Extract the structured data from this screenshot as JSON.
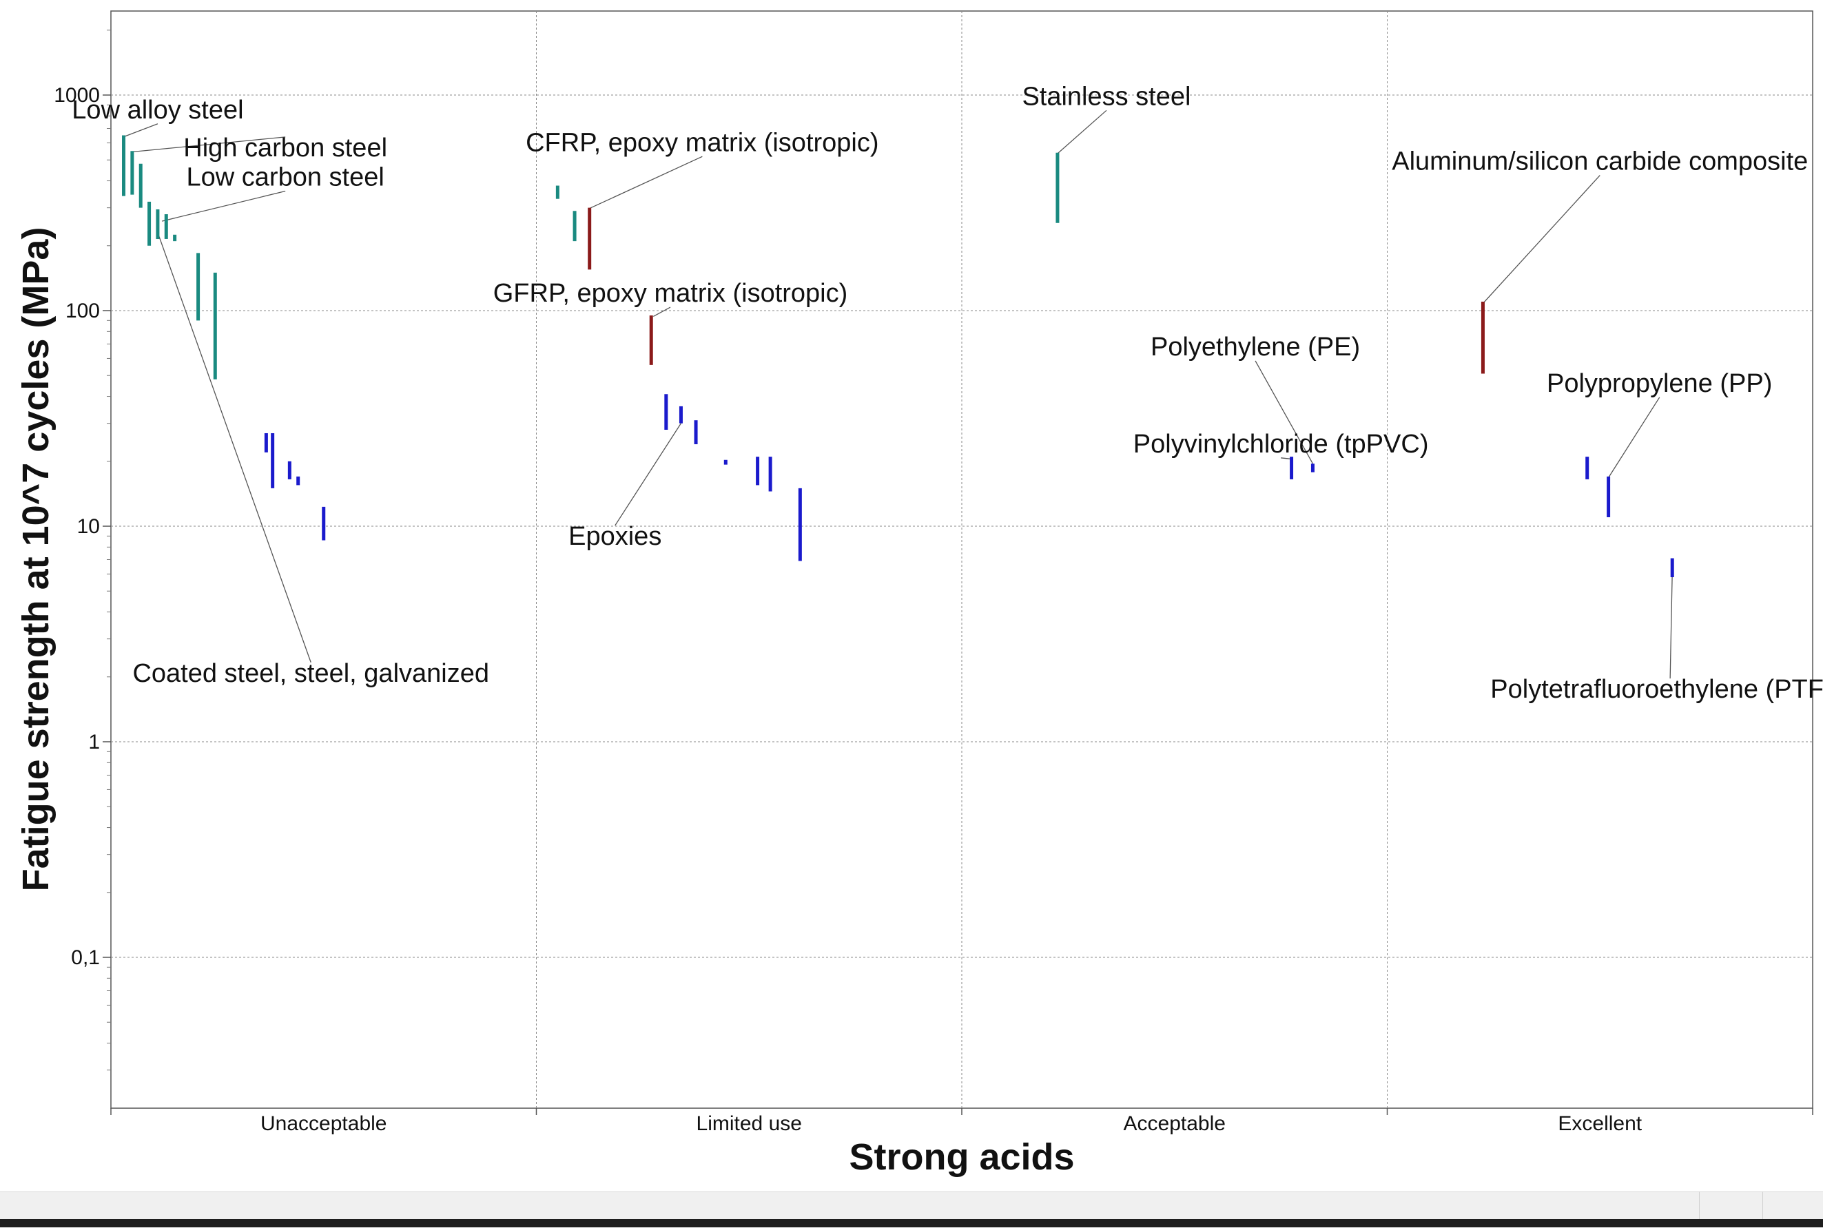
{
  "chart_data": {
    "type": "range",
    "title": "",
    "xlabel": "Strong acids",
    "ylabel": "Fatigue strength at 10^7 cycles (MPa)",
    "yscale": "log",
    "ylim": [
      0.02,
      2500
    ],
    "yticks": [
      {
        "value": 0.1,
        "label": "0,1"
      },
      {
        "value": 1,
        "label": "1"
      },
      {
        "value": 10,
        "label": "10"
      },
      {
        "value": 100,
        "label": "100"
      },
      {
        "value": 1000,
        "label": "1000"
      }
    ],
    "categories": [
      "Unacceptable",
      "Limited use",
      "Acceptable",
      "Excellent"
    ],
    "grid": true,
    "colors": {
      "metal": "#1a8a80",
      "composite": "#8b1a1a",
      "polymer": "#1a1acc"
    },
    "series": [
      {
        "category": 0,
        "pos": 0.03,
        "low": 340,
        "high": 650,
        "class": "metal"
      },
      {
        "category": 0,
        "pos": 0.05,
        "low": 345,
        "high": 550,
        "class": "metal"
      },
      {
        "category": 0,
        "pos": 0.07,
        "low": 300,
        "high": 480,
        "class": "metal"
      },
      {
        "category": 0,
        "pos": 0.09,
        "low": 200,
        "high": 320,
        "class": "metal"
      },
      {
        "category": 0,
        "pos": 0.11,
        "low": 215,
        "high": 295,
        "class": "metal"
      },
      {
        "category": 0,
        "pos": 0.13,
        "low": 215,
        "high": 280,
        "class": "metal"
      },
      {
        "category": 0,
        "pos": 0.15,
        "low": 210,
        "high": 225,
        "class": "metal"
      },
      {
        "category": 0,
        "pos": 0.205,
        "low": 90,
        "high": 185,
        "class": "metal"
      },
      {
        "category": 0,
        "pos": 0.245,
        "low": 48,
        "high": 150,
        "class": "metal"
      },
      {
        "category": 0,
        "pos": 0.365,
        "low": 22,
        "high": 27,
        "class": "polymer"
      },
      {
        "category": 0,
        "pos": 0.38,
        "low": 15,
        "high": 27,
        "class": "polymer"
      },
      {
        "category": 0,
        "pos": 0.42,
        "low": 16.5,
        "high": 20,
        "class": "polymer"
      },
      {
        "category": 0,
        "pos": 0.44,
        "low": 15.5,
        "high": 17,
        "class": "polymer"
      },
      {
        "category": 0,
        "pos": 0.5,
        "low": 8.6,
        "high": 12.3,
        "class": "polymer"
      },
      {
        "category": 1,
        "pos": 0.05,
        "low": 330,
        "high": 380,
        "class": "metal"
      },
      {
        "category": 1,
        "pos": 0.09,
        "low": 210,
        "high": 290,
        "class": "metal"
      },
      {
        "category": 1,
        "pos": 0.125,
        "low": 155,
        "high": 300,
        "class": "composite"
      },
      {
        "category": 1,
        "pos": 0.27,
        "low": 56,
        "high": 95,
        "class": "composite"
      },
      {
        "category": 1,
        "pos": 0.305,
        "low": 28,
        "high": 41,
        "class": "polymer"
      },
      {
        "category": 1,
        "pos": 0.34,
        "low": 30,
        "high": 36,
        "class": "polymer"
      },
      {
        "category": 1,
        "pos": 0.375,
        "low": 24,
        "high": 31,
        "class": "polymer"
      },
      {
        "category": 1,
        "pos": 0.445,
        "low": 19.3,
        "high": 20.3,
        "class": "polymer"
      },
      {
        "category": 1,
        "pos": 0.52,
        "low": 15.5,
        "high": 21,
        "class": "polymer"
      },
      {
        "category": 1,
        "pos": 0.55,
        "low": 14.5,
        "high": 21,
        "class": "polymer"
      },
      {
        "category": 1,
        "pos": 0.62,
        "low": 6.9,
        "high": 15,
        "class": "polymer"
      },
      {
        "category": 2,
        "pos": 0.225,
        "low": 255,
        "high": 540,
        "class": "metal"
      },
      {
        "category": 2,
        "pos": 0.775,
        "low": 16.5,
        "high": 21,
        "class": "polymer"
      },
      {
        "category": 2,
        "pos": 0.825,
        "low": 17.8,
        "high": 19.5,
        "class": "polymer"
      },
      {
        "category": 3,
        "pos": 0.225,
        "low": 51,
        "high": 110,
        "class": "composite"
      },
      {
        "category": 3,
        "pos": 0.47,
        "low": 16.5,
        "high": 21,
        "class": "polymer"
      },
      {
        "category": 3,
        "pos": 0.52,
        "low": 11,
        "high": 17,
        "class": "polymer"
      },
      {
        "category": 3,
        "pos": 0.67,
        "low": 5.8,
        "high": 7.1,
        "class": "polymer"
      }
    ],
    "annotations": [
      {
        "text": "Low alloy steel",
        "category": 0,
        "pos": 0.11,
        "value": 780,
        "target_pos": 0.03,
        "target_value": 640
      },
      {
        "text": "High carbon steel",
        "category": 0,
        "pos": 0.41,
        "value": 520,
        "target_pos": 0.05,
        "target_value": 545
      },
      {
        "text": "Low carbon steel",
        "category": 0,
        "pos": 0.41,
        "value": 380,
        "target_pos": 0.12,
        "target_value": 260
      },
      {
        "text": "Coated steel, steel, galvanized",
        "category": 0,
        "pos": 0.47,
        "value": 1.9,
        "target_pos": 0.11,
        "target_value": 230
      },
      {
        "text": "CFRP, epoxy matrix (isotropic)",
        "category": 1,
        "pos": 0.39,
        "value": 550,
        "target_pos": 0.125,
        "target_value": 298
      },
      {
        "text": "GFRP, epoxy matrix (isotropic)",
        "category": 1,
        "pos": 0.315,
        "value": 110,
        "target_pos": 0.275,
        "target_value": 94
      },
      {
        "text": "Epoxies",
        "category": 1,
        "pos": 0.185,
        "value": 8.2,
        "target_pos": 0.34,
        "target_value": 30
      },
      {
        "text": "Stainless steel",
        "category": 2,
        "pos": 0.34,
        "value": 900,
        "target_pos": 0.225,
        "target_value": 535
      },
      {
        "text": "Polyethylene (PE)",
        "category": 2,
        "pos": 0.69,
        "value": 62,
        "target_pos": 0.825,
        "target_value": 19.5
      },
      {
        "text": "Polyvinylchloride (tpPVC)",
        "category": 2,
        "pos": 0.75,
        "value": 22,
        "target_pos": 0.775,
        "target_value": 20.5
      },
      {
        "text": "Aluminum/silicon carbide composite",
        "category": 3,
        "pos": 0.5,
        "value": 450,
        "target_pos": 0.225,
        "target_value": 108
      },
      {
        "text": "Polypropylene (PP)",
        "category": 3,
        "pos": 0.64,
        "value": 42,
        "target_pos": 0.52,
        "target_value": 16.8
      },
      {
        "text": "Polytetrafluoroethylene (PTFE)",
        "category": 3,
        "pos": 0.665,
        "value": 1.6,
        "target_pos": 0.67,
        "target_value": 6.1
      }
    ]
  }
}
